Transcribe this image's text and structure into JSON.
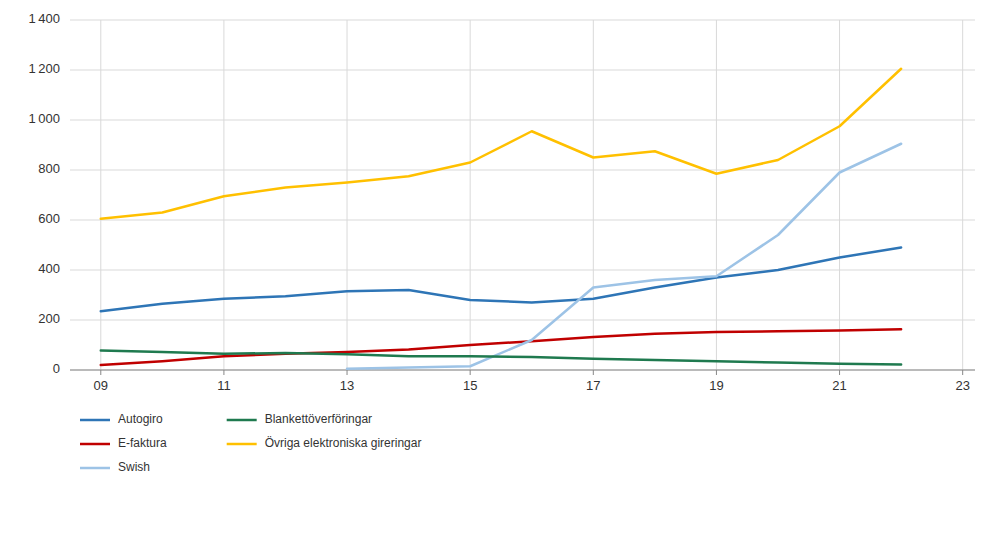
{
  "chart_data": {
    "type": "line",
    "x": [
      2009,
      2010,
      2011,
      2012,
      2013,
      2014,
      2015,
      2016,
      2017,
      2018,
      2019,
      2020,
      2021,
      2022
    ],
    "series": [
      {
        "name": "Autogiro",
        "color": "#2E75B6",
        "values": [
          235,
          265,
          285,
          295,
          315,
          320,
          280,
          270,
          285,
          330,
          370,
          400,
          450,
          490
        ]
      },
      {
        "name": "E-faktura",
        "color": "#C00000",
        "values": [
          20,
          35,
          55,
          65,
          72,
          82,
          100,
          115,
          132,
          145,
          152,
          155,
          158,
          163
        ]
      },
      {
        "name": "Swish",
        "color": "#9DC3E6",
        "values": [
          null,
          null,
          null,
          null,
          5,
          10,
          15,
          120,
          330,
          360,
          375,
          540,
          790,
          905
        ]
      },
      {
        "name": "Blankettöverföringar",
        "color": "#1F7A4F",
        "values": [
          78,
          72,
          65,
          68,
          63,
          55,
          55,
          52,
          45,
          40,
          35,
          30,
          25,
          22
        ]
      },
      {
        "name": "Övriga elektroniska gireringar",
        "color": "#FFC000",
        "values": [
          605,
          630,
          695,
          730,
          750,
          775,
          830,
          955,
          850,
          875,
          785,
          840,
          975,
          1205
        ]
      }
    ],
    "xlim": [
      2008.5,
      2023.2
    ],
    "xticks": [
      {
        "value": 2009,
        "label": "09"
      },
      {
        "value": 2011,
        "label": "11"
      },
      {
        "value": 2013,
        "label": "13"
      },
      {
        "value": 2015,
        "label": "15"
      },
      {
        "value": 2017,
        "label": "17"
      },
      {
        "value": 2019,
        "label": "19"
      },
      {
        "value": 2021,
        "label": "21"
      },
      {
        "value": 2023,
        "label": "23"
      }
    ],
    "ylim": [
      0,
      1400
    ],
    "yticks": [
      0,
      200,
      400,
      600,
      800,
      {
        "value": 1000,
        "label": "1 000"
      },
      {
        "value": 1200,
        "label": "1 200"
      },
      {
        "value": 1400,
        "label": "1 400"
      }
    ],
    "grid": true,
    "legend": "bottom"
  }
}
